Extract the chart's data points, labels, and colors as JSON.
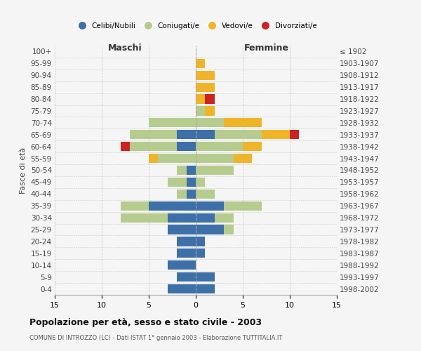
{
  "age_groups_bottom_to_top": [
    "0-4",
    "5-9",
    "10-14",
    "15-19",
    "20-24",
    "25-29",
    "30-34",
    "35-39",
    "40-44",
    "45-49",
    "50-54",
    "55-59",
    "60-64",
    "65-69",
    "70-74",
    "75-79",
    "80-84",
    "85-89",
    "90-94",
    "95-99",
    "100+"
  ],
  "birth_years_bottom_to_top": [
    "1998-2002",
    "1993-1997",
    "1988-1992",
    "1983-1987",
    "1978-1982",
    "1973-1977",
    "1968-1972",
    "1963-1967",
    "1958-1962",
    "1953-1957",
    "1948-1952",
    "1943-1947",
    "1938-1942",
    "1933-1937",
    "1928-1932",
    "1923-1927",
    "1918-1922",
    "1913-1917",
    "1908-1912",
    "1903-1907",
    "≤ 1902"
  ],
  "males": {
    "celibi": [
      3,
      2,
      3,
      2,
      2,
      3,
      3,
      5,
      1,
      1,
      1,
      0,
      2,
      2,
      0,
      0,
      0,
      0,
      0,
      0,
      0
    ],
    "coniugati": [
      0,
      0,
      0,
      0,
      0,
      0,
      5,
      3,
      1,
      2,
      1,
      4,
      5,
      5,
      5,
      0,
      0,
      0,
      0,
      0,
      0
    ],
    "vedovi": [
      0,
      0,
      0,
      0,
      0,
      0,
      0,
      0,
      0,
      0,
      0,
      1,
      0,
      0,
      0,
      0,
      0,
      0,
      0,
      0,
      0
    ],
    "divorziati": [
      0,
      0,
      0,
      0,
      0,
      0,
      0,
      0,
      0,
      0,
      0,
      0,
      1,
      0,
      0,
      0,
      0,
      0,
      0,
      0,
      0
    ]
  },
  "females": {
    "nubili": [
      2,
      2,
      0,
      1,
      1,
      3,
      2,
      3,
      0,
      0,
      0,
      0,
      0,
      2,
      0,
      0,
      0,
      0,
      0,
      0,
      0
    ],
    "coniugate": [
      0,
      0,
      0,
      0,
      0,
      1,
      2,
      4,
      2,
      1,
      4,
      4,
      5,
      5,
      3,
      1,
      0,
      0,
      0,
      0,
      0
    ],
    "vedove": [
      0,
      0,
      0,
      0,
      0,
      0,
      0,
      0,
      0,
      0,
      0,
      2,
      2,
      3,
      4,
      1,
      1,
      2,
      2,
      1,
      0
    ],
    "divorziate": [
      0,
      0,
      0,
      0,
      0,
      0,
      0,
      0,
      0,
      0,
      0,
      0,
      0,
      1,
      0,
      0,
      1,
      0,
      0,
      0,
      0
    ]
  },
  "colors": {
    "celibi_nubili": "#3d6fa8",
    "coniugati": "#b5cc8e",
    "vedovi": "#f0b429",
    "divorziati": "#cc2222"
  },
  "title": "Popolazione per età, sesso e stato civile - 2003",
  "subtitle": "COMUNE DI INTROZZO (LC) - Dati ISTAT 1° gennaio 2003 - Elaborazione TUTTITALIA.IT",
  "xlabel_left": "Maschi",
  "xlabel_right": "Femmine",
  "ylabel_left": "Fasce di età",
  "xlim": 15,
  "background_color": "#f5f5f5",
  "grid_color": "#cccccc",
  "legend_items": [
    "Celibi/Nubili",
    "Coniugati/e",
    "Vedovi/e",
    "Divorziati/e"
  ]
}
